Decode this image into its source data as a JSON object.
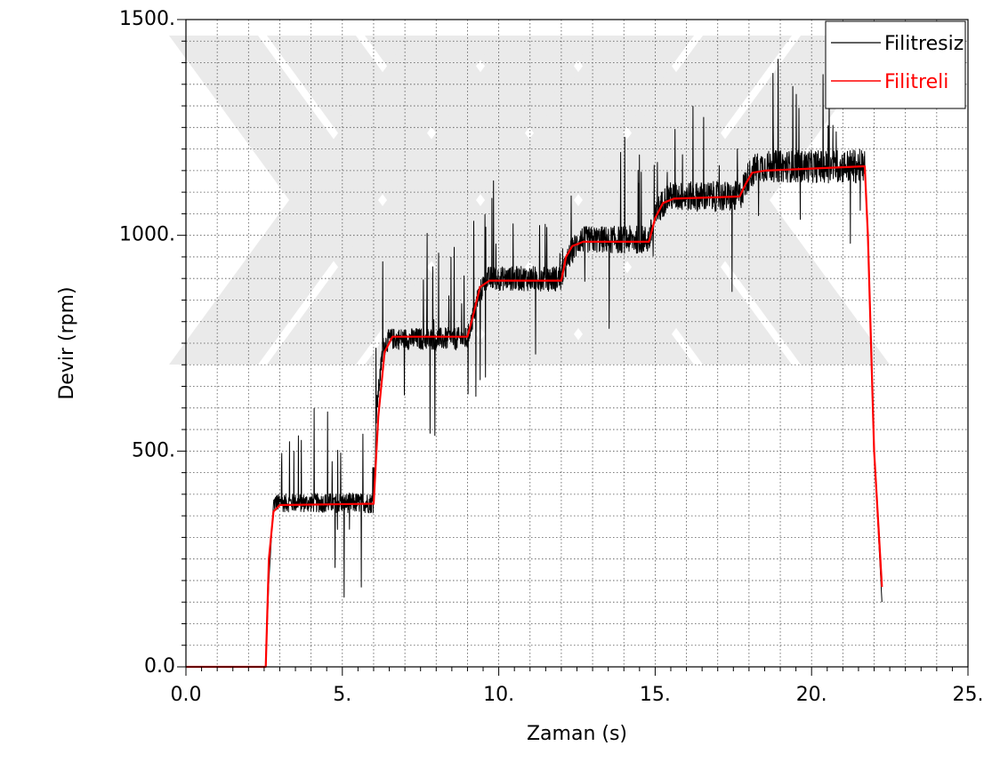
{
  "chart_data": {
    "type": "line",
    "title": "",
    "xlabel": "Zaman (s)",
    "ylabel": "Devir (rpm)",
    "xlim": [
      0,
      25
    ],
    "ylim": [
      0,
      1500
    ],
    "grid": true,
    "legend_position": "top-right",
    "x_ticks": [
      {
        "value": 0,
        "label": "0.0"
      },
      {
        "value": 5,
        "label": "5."
      },
      {
        "value": 10,
        "label": "10."
      },
      {
        "value": 15,
        "label": "15."
      },
      {
        "value": 20,
        "label": "20."
      },
      {
        "value": 25,
        "label": "25."
      }
    ],
    "y_ticks": [
      {
        "value": 0,
        "label": "0.0"
      },
      {
        "value": 500,
        "label": "500."
      },
      {
        "value": 1000,
        "label": "1000."
      },
      {
        "value": 1500,
        "label": "1500."
      }
    ],
    "series": [
      {
        "name": "Filitresiz",
        "color": "#000000",
        "noisy": true,
        "x": [
          0,
          2.55,
          2.65,
          2.8,
          6.0,
          6.1,
          6.3,
          6.5,
          9.0,
          9.3,
          9.6,
          12.0,
          12.3,
          12.6,
          14.8,
          15.1,
          15.4,
          17.7,
          18.0,
          18.3,
          21.7,
          21.8,
          22.0,
          22.25
        ],
        "y": [
          0,
          0,
          200,
          380,
          380,
          600,
          740,
          760,
          760,
          850,
          900,
          900,
          960,
          990,
          990,
          1060,
          1090,
          1090,
          1140,
          1160,
          1160,
          1000,
          500,
          150
        ]
      },
      {
        "name": "Filitreli",
        "color": "#ff0000",
        "noisy": false,
        "x": [
          0,
          2.55,
          2.65,
          2.8,
          3.0,
          6.0,
          6.15,
          6.35,
          6.6,
          9.0,
          9.2,
          9.4,
          9.7,
          12.0,
          12.15,
          12.35,
          12.7,
          14.8,
          15.0,
          15.25,
          15.6,
          17.7,
          17.9,
          18.1,
          18.5,
          21.7,
          21.8,
          22.0,
          22.25
        ],
        "y": [
          0,
          0,
          250,
          360,
          375,
          378,
          580,
          730,
          765,
          765,
          820,
          880,
          895,
          895,
          950,
          975,
          985,
          985,
          1040,
          1075,
          1085,
          1090,
          1120,
          1145,
          1150,
          1160,
          1000,
          500,
          185
        ]
      }
    ]
  }
}
